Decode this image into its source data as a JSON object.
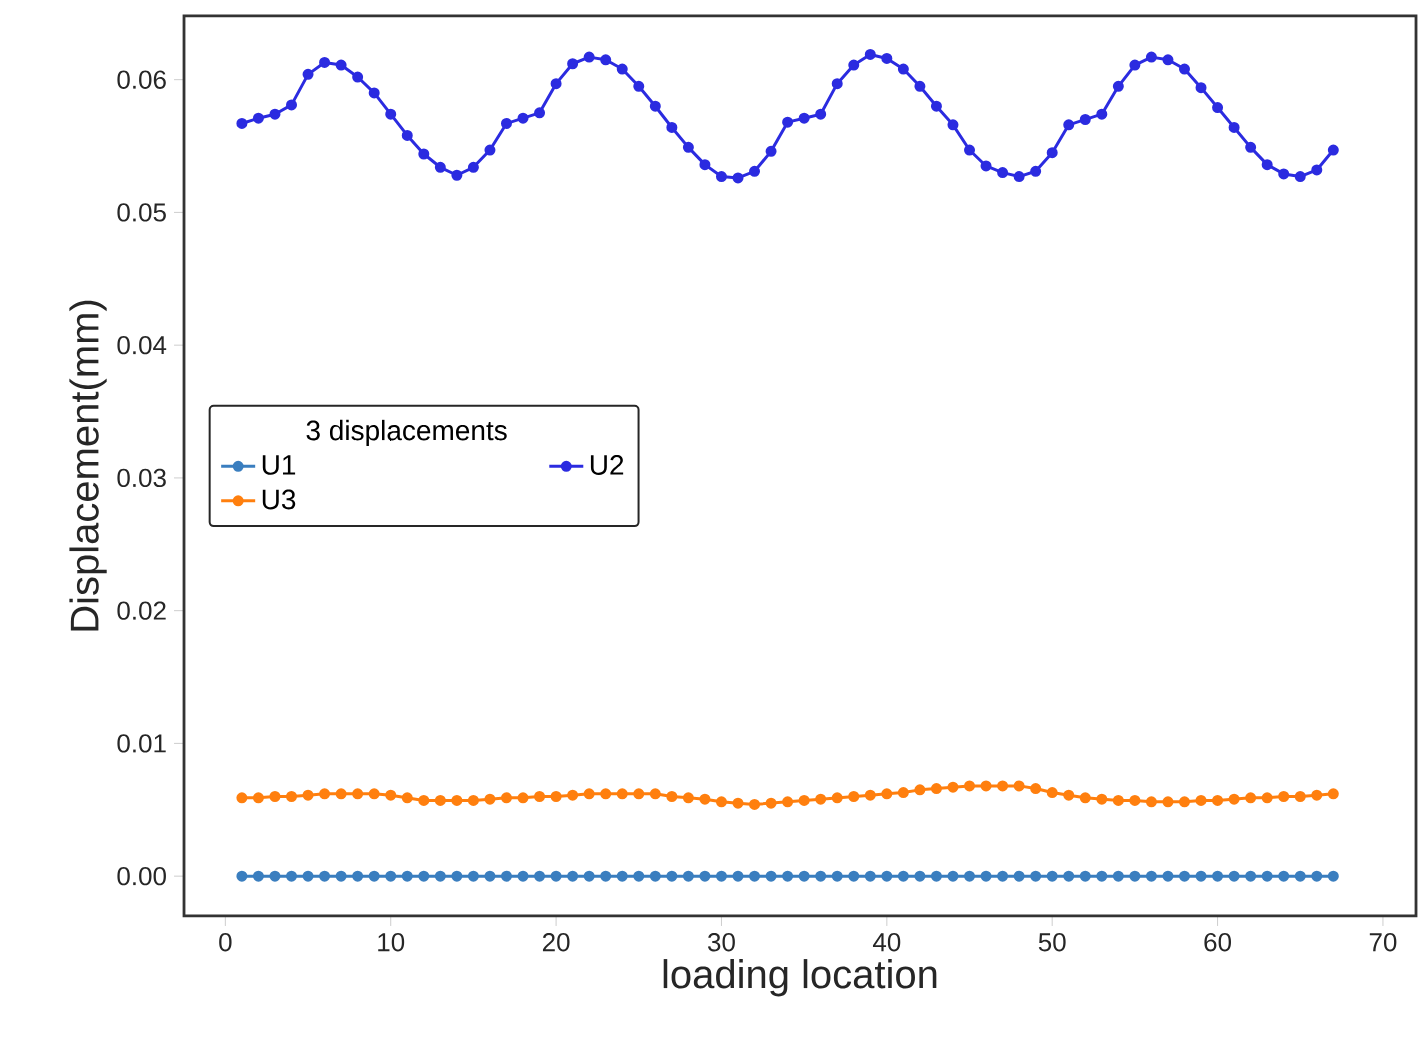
{
  "chart_data": {
    "type": "line",
    "xlabel": "loading location",
    "ylabel": "Displacement(mm)",
    "legend_title": "3 displacements",
    "x": [
      1,
      2,
      3,
      4,
      5,
      6,
      7,
      8,
      9,
      10,
      11,
      12,
      13,
      14,
      15,
      16,
      17,
      18,
      19,
      20,
      21,
      22,
      23,
      24,
      25,
      26,
      27,
      28,
      29,
      30,
      31,
      32,
      33,
      34,
      35,
      36,
      37,
      38,
      39,
      40,
      41,
      42,
      43,
      44,
      45,
      46,
      47,
      48,
      49,
      50,
      51,
      52,
      53,
      54,
      55,
      56,
      57,
      58,
      59,
      60,
      61,
      62,
      63,
      64,
      65,
      66,
      67
    ],
    "series": [
      {
        "name": "U1",
        "color": "#3a7ebf",
        "values": [
          0,
          0,
          0,
          0,
          0,
          0,
          0,
          0,
          0,
          0,
          0,
          0,
          0,
          0,
          0,
          0,
          0,
          0,
          0,
          0,
          0,
          0,
          0,
          0,
          0,
          0,
          0,
          0,
          0,
          0,
          0,
          0,
          0,
          0,
          0,
          0,
          0,
          0,
          0,
          0,
          0,
          0,
          0,
          0,
          0,
          0,
          0,
          0,
          0,
          0,
          0,
          0,
          0,
          0,
          0,
          0,
          0,
          0,
          0,
          0,
          0,
          0,
          0,
          0,
          0,
          0,
          0
        ]
      },
      {
        "name": "U2",
        "color": "#2b2be0",
        "values": [
          0.0567,
          0.0571,
          0.0574,
          0.0581,
          0.0604,
          0.0613,
          0.0611,
          0.0602,
          0.059,
          0.0574,
          0.0558,
          0.0544,
          0.0534,
          0.0528,
          0.0534,
          0.0547,
          0.0567,
          0.0571,
          0.0575,
          0.0597,
          0.0612,
          0.0617,
          0.0615,
          0.0608,
          0.0595,
          0.058,
          0.0564,
          0.0549,
          0.0536,
          0.0527,
          0.0526,
          0.0531,
          0.0546,
          0.0568,
          0.0571,
          0.0574,
          0.0597,
          0.0611,
          0.0619,
          0.0616,
          0.0608,
          0.0595,
          0.058,
          0.0566,
          0.0547,
          0.0535,
          0.053,
          0.0527,
          0.0531,
          0.0545,
          0.0566,
          0.057,
          0.0574,
          0.0595,
          0.0611,
          0.0617,
          0.0615,
          0.0608,
          0.0594,
          0.0579,
          0.0564,
          0.0549,
          0.0536,
          0.0529,
          0.0527,
          0.0532,
          0.0547
        ]
      },
      {
        "name": "U3",
        "color": "#ff7f0e",
        "values": [
          0.0059,
          0.0059,
          0.006,
          0.006,
          0.0061,
          0.0062,
          0.0062,
          0.0062,
          0.0062,
          0.0061,
          0.0059,
          0.0057,
          0.0057,
          0.0057,
          0.0057,
          0.0058,
          0.0059,
          0.0059,
          0.006,
          0.006,
          0.0061,
          0.0062,
          0.0062,
          0.0062,
          0.0062,
          0.0062,
          0.006,
          0.0059,
          0.0058,
          0.0056,
          0.0055,
          0.0054,
          0.0055,
          0.0056,
          0.0057,
          0.0058,
          0.0059,
          0.006,
          0.0061,
          0.0062,
          0.0063,
          0.0065,
          0.0066,
          0.0067,
          0.0068,
          0.0068,
          0.0068,
          0.0068,
          0.0066,
          0.0063,
          0.0061,
          0.0059,
          0.0058,
          0.0057,
          0.0057,
          0.0056,
          0.0056,
          0.0056,
          0.0057,
          0.0057,
          0.0058,
          0.0059,
          0.0059,
          0.006,
          0.006,
          0.0061,
          0.0062
        ]
      }
    ],
    "xlim": [
      -2.5,
      72
    ],
    "ylim": [
      -0.003,
      0.0648
    ],
    "xticks": [
      0,
      10,
      20,
      30,
      40,
      50,
      60,
      70
    ],
    "yticks": [
      {
        "value": 0,
        "label": "0.00"
      },
      {
        "value": 0.01,
        "label": "0.01"
      },
      {
        "value": 0.02,
        "label": "0.02"
      },
      {
        "value": 0.03,
        "label": "0.03"
      },
      {
        "value": 0.04,
        "label": "0.04"
      },
      {
        "value": 0.05,
        "label": "0.05"
      },
      {
        "value": 0.06,
        "label": "0.06"
      }
    ],
    "grid": false,
    "legend": "left",
    "marker": "circle",
    "line_style": "solid"
  }
}
